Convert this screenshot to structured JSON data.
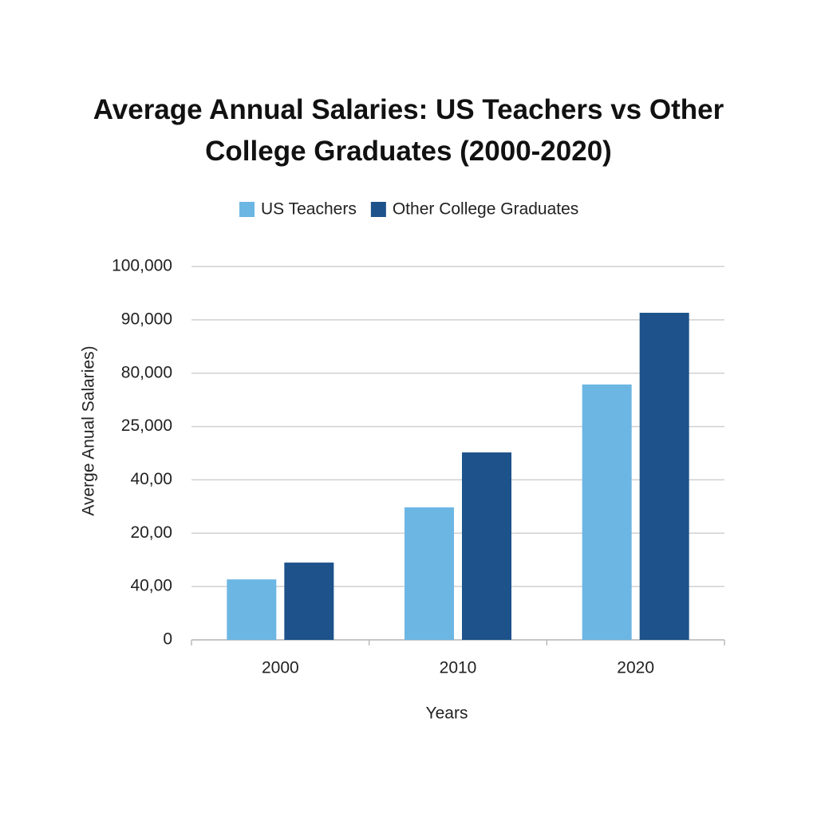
{
  "chart_data": {
    "type": "bar",
    "title": "Average Annual Salaries: US Teachers vs Other College Graduates (2000-2020)",
    "x_label": "Years",
    "y_label": "Averge Anual Salaries)",
    "categories": [
      "2000",
      "2010",
      "2020"
    ],
    "series": [
      {
        "name": "US Teachers",
        "color": "#6cb6e3",
        "values": [
          16200,
          35500,
          68400
        ]
      },
      {
        "name": "Other College Graduates",
        "color": "#1d528b",
        "values": [
          20700,
          50200,
          87600
        ]
      }
    ],
    "ylim": [
      0,
      100000
    ],
    "yticks": [
      0,
      {
        "value": 14286,
        "label": "40,00"
      },
      {
        "value": 28571,
        "label": "20,00"
      },
      {
        "value": 42857,
        "label": "40,00"
      },
      {
        "value": 57143,
        "label": "25,000"
      },
      {
        "value": 71429,
        "label": "80,000"
      },
      {
        "value": 85714,
        "label": "90,000"
      },
      {
        "value": 100000,
        "label": "100,000"
      }
    ],
    "grid": true,
    "legend": "top"
  }
}
